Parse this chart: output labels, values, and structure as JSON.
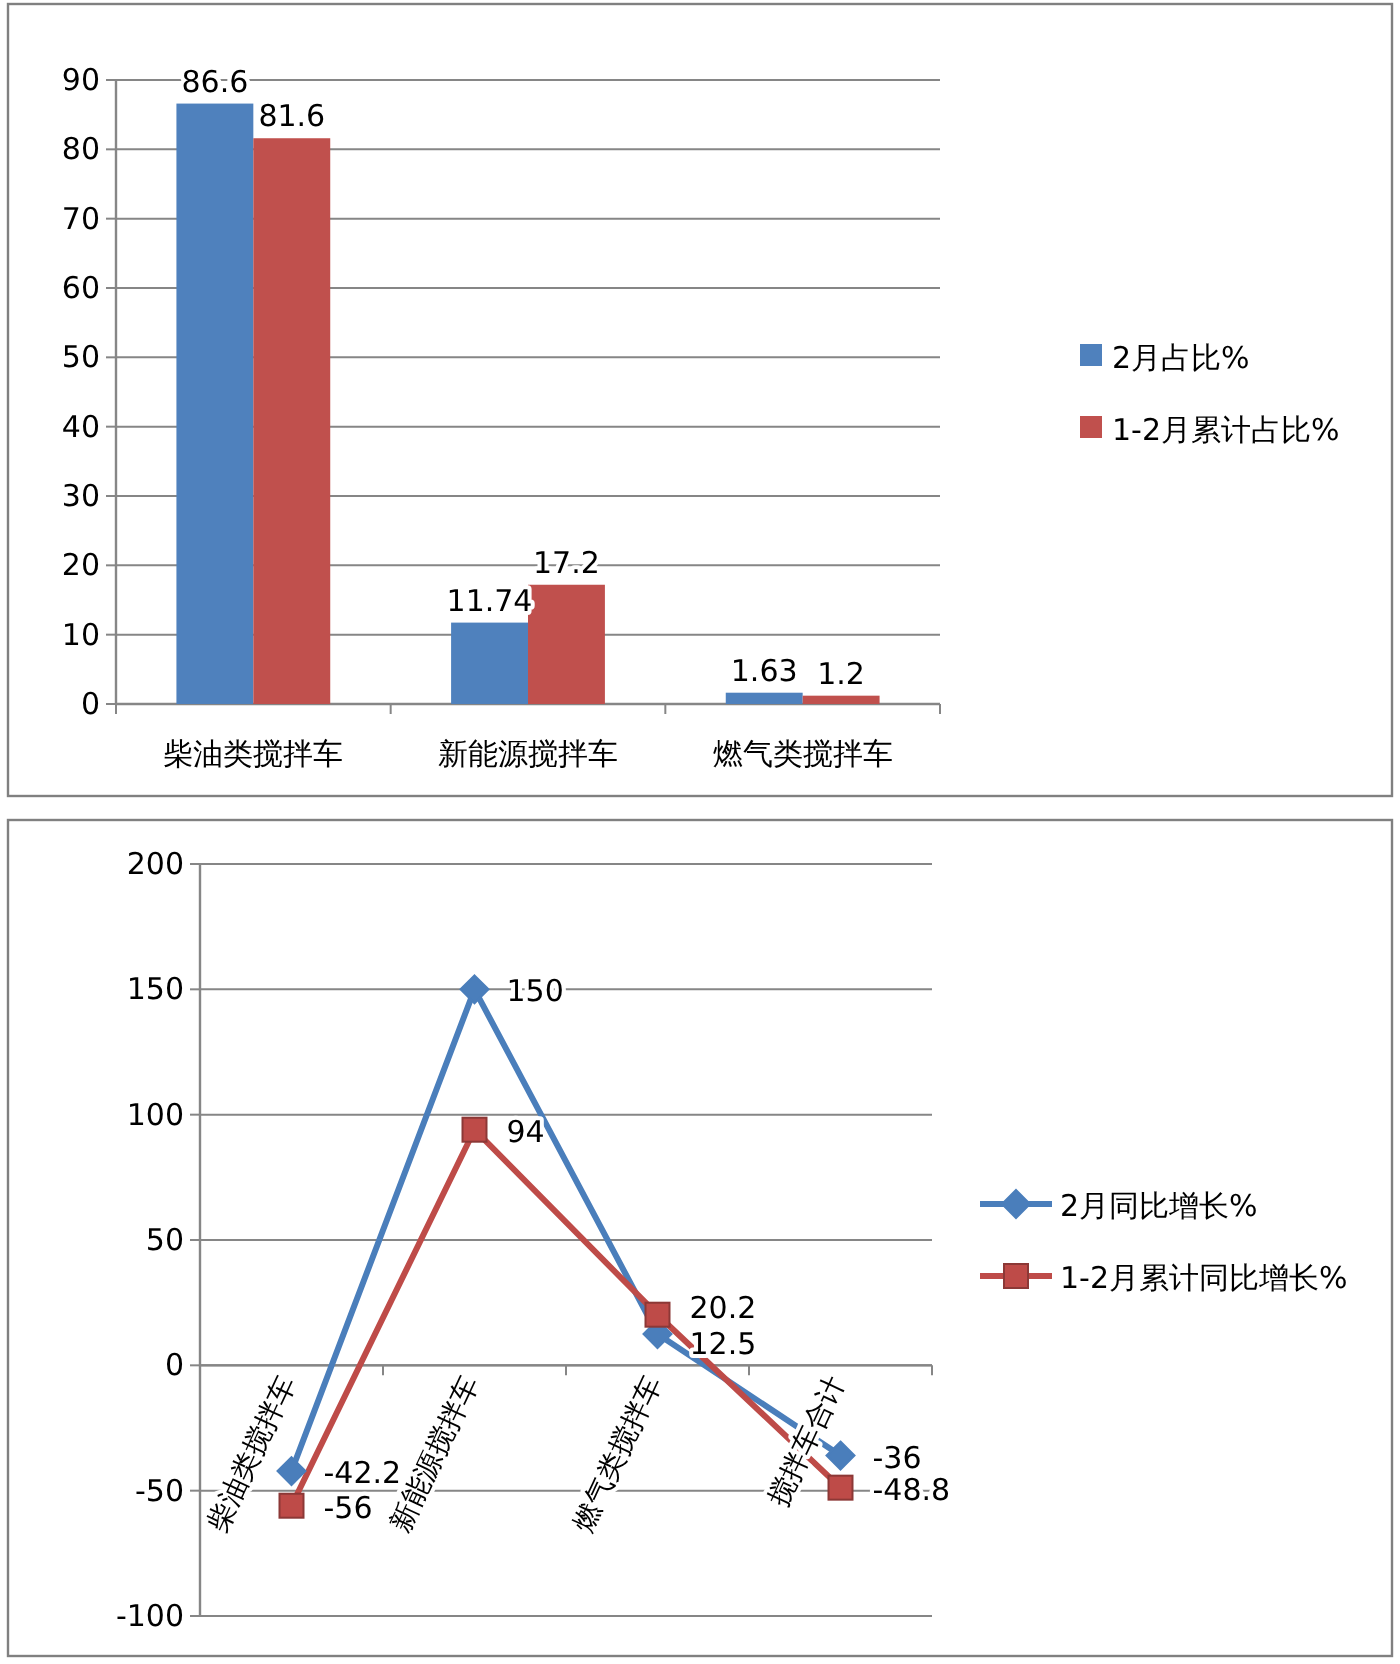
{
  "chart_data": [
    {
      "type": "bar",
      "categories": [
        "柴油类搅拌车",
        "新能源搅拌车",
        "燃气类搅拌车"
      ],
      "series": [
        {
          "name": "2月占比%",
          "color": "#4f81bd",
          "values": [
            86.6,
            11.74,
            1.63
          ]
        },
        {
          "name": "1-2月累计占比%",
          "color": "#c0504d",
          "values": [
            81.6,
            17.2,
            1.2
          ]
        }
      ],
      "ylim": [
        0,
        90
      ],
      "yticks": [
        0,
        10,
        20,
        30,
        40,
        50,
        60,
        70,
        80,
        90
      ],
      "grid": "y",
      "legend": "right",
      "data_labels": true
    },
    {
      "type": "line",
      "categories": [
        "柴油类搅拌车",
        "新能源搅拌车",
        "燃气类搅拌车",
        "搅拌车合计"
      ],
      "series": [
        {
          "name": "2月同比增长%",
          "color": "#4a7ebb",
          "marker": "diamond",
          "values": [
            -42.2,
            150,
            12.5,
            -36
          ]
        },
        {
          "name": "1-2月累计同比增长%",
          "color": "#be4b48",
          "marker": "square",
          "values": [
            -56,
            94,
            20.2,
            -48.8
          ]
        }
      ],
      "ylim": [
        -100,
        200
      ],
      "yticks": [
        -100,
        -50,
        0,
        50,
        100,
        150,
        200
      ],
      "grid": "y",
      "legend": "right",
      "data_labels": true,
      "line_style": "solid"
    }
  ]
}
